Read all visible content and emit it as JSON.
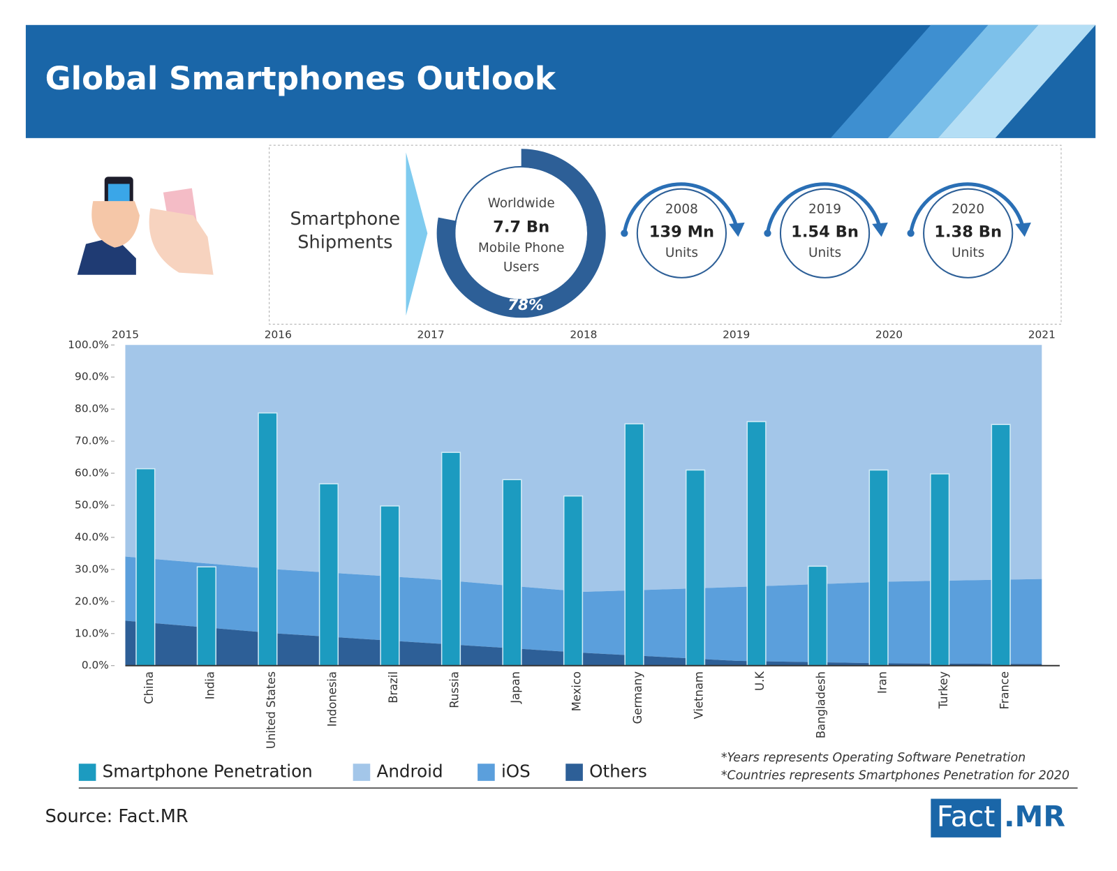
{
  "header": {
    "title": "Global Smartphones Outlook"
  },
  "infographic": {
    "label": "Smartphone Shipments",
    "donut": {
      "line1": "Worldwide",
      "line2": "7.7 Bn",
      "line3": "Mobile Phone",
      "line4": "Users",
      "value": 78,
      "value_label": "78%"
    },
    "circles": [
      {
        "year": "2008",
        "value": "139 Mn",
        "unit": "Units"
      },
      {
        "year": "2019",
        "value": "1.54 Bn",
        "unit": "Units"
      },
      {
        "year": "2020",
        "value": "1.38 Bn",
        "unit": "Units"
      }
    ]
  },
  "chart_data": [
    {
      "type": "area",
      "stacked": true,
      "categories": [
        "2015",
        "2016",
        "2017",
        "2018",
        "2019",
        "2020",
        "2021"
      ],
      "ylim": [
        0,
        100
      ],
      "series": [
        {
          "name": "Android",
          "color": "#a3c6e9",
          "values": [
            66,
            70,
            73,
            77,
            75.5,
            73.8,
            73
          ]
        },
        {
          "name": "iOS",
          "color": "#5b9fdc",
          "values": [
            20,
            20,
            20,
            19,
            23,
            25.5,
            26.5
          ]
        },
        {
          "name": "Others",
          "color": "#2d5f97",
          "values": [
            14,
            10,
            7,
            4,
            1.5,
            0.7,
            0.5
          ]
        }
      ]
    },
    {
      "type": "bar",
      "categories": [
        "China",
        "India",
        "United States",
        "Indonesia",
        "Brazil",
        "Russia",
        "Japan",
        "Mexico",
        "Germany",
        "Vietnam",
        "U.K",
        "Bangladesh",
        "Iran",
        "Turkey",
        "France"
      ],
      "ylim": [
        0,
        100
      ],
      "yticks": [
        {
          "value": 0,
          "label": "0.0%"
        },
        {
          "value": 10,
          "label": "10.0%"
        },
        {
          "value": 20,
          "label": "20.0%"
        },
        {
          "value": 30,
          "label": "30.0%"
        },
        {
          "value": 40,
          "label": "40.0%"
        },
        {
          "value": 50,
          "label": "50.0%"
        },
        {
          "value": 60,
          "label": "60.0%"
        },
        {
          "value": 70,
          "label": "70.0%"
        },
        {
          "value": 80,
          "label": "80.0%"
        },
        {
          "value": 90,
          "label": "90.0%"
        },
        {
          "value": 100,
          "label": "100.0%"
        }
      ],
      "series": [
        {
          "name": "Smartphone Penetration",
          "color": "#1c9bc0",
          "values": [
            61.4,
            30.8,
            78.8,
            56.7,
            49.8,
            66.5,
            58,
            52.9,
            75.4,
            61,
            76.1,
            31,
            61,
            59.8,
            75.2
          ]
        }
      ]
    }
  ],
  "notes": [
    "*Years represents Operating Software Penetration",
    "*Countries represents Smartphones Penetration for 2020"
  ],
  "footer": {
    "source": "Source: Fact.MR",
    "logo_left": "Fact",
    "logo_right": ".MR"
  }
}
